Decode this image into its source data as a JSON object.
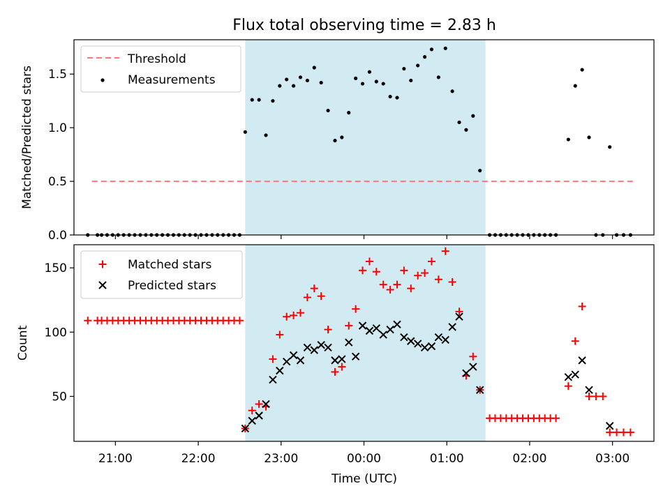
{
  "colors": {
    "shade": "#add8e6",
    "threshold": "#ff7777",
    "measurements": "#000000",
    "matched": "#ff0000",
    "predicted": "#000000"
  },
  "chart_data": [
    {
      "type": "scatter",
      "title": "Flux total observing time = 2.83 h",
      "xlabel": "",
      "ylabel": "Matched/Predicted stars",
      "ylim": [
        0,
        1.82
      ],
      "yticks": [
        0.0,
        0.5,
        1.0,
        1.5
      ],
      "ytick_labels": [
        "0.0",
        "0.5",
        "1.0",
        "1.5"
      ],
      "xlim": [
        "20:30",
        "03:30"
      ],
      "grid": false,
      "legend_position": "top-left",
      "shaded_interval": {
        "start": "22:34",
        "end": "01:28"
      },
      "threshold": {
        "name": "Threshold",
        "value": 0.5,
        "x_start": "20:43",
        "x_end": "03:17"
      },
      "series": [
        {
          "name": "Measurements",
          "marker": "dot",
          "points": [
            [
              "20:40",
              0
            ],
            [
              "20:47",
              0
            ],
            [
              "20:50",
              0
            ],
            [
              "20:54",
              0
            ],
            [
              "20:58",
              0
            ],
            [
              "21:02",
              0
            ],
            [
              "21:06",
              0
            ],
            [
              "21:10",
              0
            ],
            [
              "21:14",
              0
            ],
            [
              "21:18",
              0
            ],
            [
              "21:22",
              0
            ],
            [
              "21:26",
              0
            ],
            [
              "21:30",
              0
            ],
            [
              "21:34",
              0
            ],
            [
              "21:38",
              0
            ],
            [
              "21:42",
              0
            ],
            [
              "21:46",
              0
            ],
            [
              "21:50",
              0
            ],
            [
              "21:54",
              0
            ],
            [
              "21:58",
              0
            ],
            [
              "22:02",
              0
            ],
            [
              "22:06",
              0
            ],
            [
              "22:10",
              0
            ],
            [
              "22:14",
              0
            ],
            [
              "22:18",
              0
            ],
            [
              "22:22",
              0
            ],
            [
              "22:26",
              0
            ],
            [
              "22:30",
              0
            ],
            [
              "22:34",
              0.96
            ],
            [
              "22:39",
              1.26
            ],
            [
              "22:44",
              1.26
            ],
            [
              "22:49",
              0.93
            ],
            [
              "22:54",
              1.25
            ],
            [
              "22:59",
              1.39
            ],
            [
              "23:04",
              1.45
            ],
            [
              "23:09",
              1.39
            ],
            [
              "23:14",
              1.47
            ],
            [
              "23:19",
              1.44
            ],
            [
              "23:24",
              1.56
            ],
            [
              "23:29",
              1.42
            ],
            [
              "23:34",
              1.16
            ],
            [
              "23:39",
              0.88
            ],
            [
              "23:44",
              0.91
            ],
            [
              "23:49",
              1.14
            ],
            [
              "23:54",
              1.46
            ],
            [
              "23:59",
              1.41
            ],
            [
              "00:04",
              1.52
            ],
            [
              "00:09",
              1.43
            ],
            [
              "00:14",
              1.41
            ],
            [
              "00:19",
              1.29
            ],
            [
              "00:24",
              1.28
            ],
            [
              "00:29",
              1.55
            ],
            [
              "00:34",
              1.44
            ],
            [
              "00:39",
              1.58
            ],
            [
              "00:44",
              1.66
            ],
            [
              "00:49",
              1.73
            ],
            [
              "00:54",
              1.47
            ],
            [
              "00:59",
              1.74
            ],
            [
              "01:04",
              1.34
            ],
            [
              "01:09",
              1.05
            ],
            [
              "01:14",
              0.98
            ],
            [
              "01:19",
              1.11
            ],
            [
              "01:24",
              0.6
            ],
            [
              "01:31",
              0
            ],
            [
              "01:35",
              0
            ],
            [
              "01:39",
              0
            ],
            [
              "01:43",
              0
            ],
            [
              "01:47",
              0
            ],
            [
              "01:51",
              0
            ],
            [
              "01:55",
              0
            ],
            [
              "01:59",
              0
            ],
            [
              "02:03",
              0
            ],
            [
              "02:07",
              0
            ],
            [
              "02:11",
              0
            ],
            [
              "02:15",
              0
            ],
            [
              "02:19",
              0
            ],
            [
              "02:28",
              0.89
            ],
            [
              "02:33",
              1.39
            ],
            [
              "02:38",
              1.54
            ],
            [
              "02:43",
              0.91
            ],
            [
              "02:48",
              0
            ],
            [
              "02:53",
              0
            ],
            [
              "02:58",
              0.82
            ],
            [
              "03:03",
              0
            ],
            [
              "03:08",
              0
            ],
            [
              "03:13",
              0
            ]
          ]
        }
      ]
    },
    {
      "type": "scatter",
      "title": "",
      "xlabel": "Time (UTC)",
      "ylabel": "Count",
      "ylim": [
        15,
        168
      ],
      "yticks": [
        50,
        100,
        150
      ],
      "ytick_labels": [
        "50",
        "100",
        "150"
      ],
      "xlim": [
        "20:30",
        "03:30"
      ],
      "xticks": [
        "21:00",
        "22:00",
        "23:00",
        "00:00",
        "01:00",
        "02:00",
        "03:00"
      ],
      "grid": false,
      "legend_position": "top-left",
      "shaded_interval": {
        "start": "22:34",
        "end": "01:28"
      },
      "series": [
        {
          "name": "Matched stars",
          "marker": "plus",
          "points": [
            [
              "20:40",
              109
            ],
            [
              "20:47",
              109
            ],
            [
              "20:50",
              109
            ],
            [
              "20:54",
              109
            ],
            [
              "20:58",
              109
            ],
            [
              "21:02",
              109
            ],
            [
              "21:06",
              109
            ],
            [
              "21:10",
              109
            ],
            [
              "21:14",
              109
            ],
            [
              "21:18",
              109
            ],
            [
              "21:22",
              109
            ],
            [
              "21:26",
              109
            ],
            [
              "21:30",
              109
            ],
            [
              "21:34",
              109
            ],
            [
              "21:38",
              109
            ],
            [
              "21:42",
              109
            ],
            [
              "21:46",
              109
            ],
            [
              "21:50",
              109
            ],
            [
              "21:54",
              109
            ],
            [
              "21:58",
              109
            ],
            [
              "22:02",
              109
            ],
            [
              "22:06",
              109
            ],
            [
              "22:10",
              109
            ],
            [
              "22:14",
              109
            ],
            [
              "22:18",
              109
            ],
            [
              "22:22",
              109
            ],
            [
              "22:26",
              109
            ],
            [
              "22:30",
              109
            ],
            [
              "22:34",
              25
            ],
            [
              "22:39",
              39
            ],
            [
              "22:44",
              44
            ],
            [
              "22:49",
              42
            ],
            [
              "22:54",
              79
            ],
            [
              "22:59",
              98
            ],
            [
              "23:04",
              112
            ],
            [
              "23:09",
              113
            ],
            [
              "23:14",
              115
            ],
            [
              "23:19",
              127
            ],
            [
              "23:24",
              134
            ],
            [
              "23:29",
              128
            ],
            [
              "23:34",
              102
            ],
            [
              "23:39",
              69
            ],
            [
              "23:44",
              73
            ],
            [
              "23:49",
              105
            ],
            [
              "23:54",
              118
            ],
            [
              "23:59",
              148
            ],
            [
              "00:04",
              155
            ],
            [
              "00:09",
              147
            ],
            [
              "00:14",
              137
            ],
            [
              "00:19",
              133
            ],
            [
              "00:24",
              137
            ],
            [
              "00:29",
              148
            ],
            [
              "00:34",
              134
            ],
            [
              "00:39",
              144
            ],
            [
              "00:44",
              146
            ],
            [
              "00:49",
              155
            ],
            [
              "00:54",
              141
            ],
            [
              "00:59",
              163
            ],
            [
              "01:04",
              139
            ],
            [
              "01:09",
              116
            ],
            [
              "01:14",
              66
            ],
            [
              "01:19",
              81
            ],
            [
              "01:24",
              55
            ],
            [
              "01:31",
              33
            ],
            [
              "01:35",
              33
            ],
            [
              "01:39",
              33
            ],
            [
              "01:43",
              33
            ],
            [
              "01:47",
              33
            ],
            [
              "01:51",
              33
            ],
            [
              "01:55",
              33
            ],
            [
              "01:59",
              33
            ],
            [
              "02:03",
              33
            ],
            [
              "02:07",
              33
            ],
            [
              "02:11",
              33
            ],
            [
              "02:15",
              33
            ],
            [
              "02:19",
              33
            ],
            [
              "02:28",
              58
            ],
            [
              "02:33",
              93
            ],
            [
              "02:38",
              120
            ],
            [
              "02:43",
              50
            ],
            [
              "02:48",
              50
            ],
            [
              "02:53",
              50
            ],
            [
              "02:58",
              22
            ],
            [
              "03:03",
              22
            ],
            [
              "03:08",
              22
            ],
            [
              "03:13",
              22
            ]
          ]
        },
        {
          "name": "Predicted stars",
          "marker": "x",
          "points": [
            [
              "22:34",
              25
            ],
            [
              "22:39",
              31
            ],
            [
              "22:44",
              35
            ],
            [
              "22:49",
              44
            ],
            [
              "22:54",
              63
            ],
            [
              "22:59",
              70
            ],
            [
              "23:04",
              77
            ],
            [
              "23:09",
              82
            ],
            [
              "23:14",
              78
            ],
            [
              "23:19",
              88
            ],
            [
              "23:24",
              86
            ],
            [
              "23:29",
              90
            ],
            [
              "23:34",
              88
            ],
            [
              "23:39",
              78
            ],
            [
              "23:44",
              79
            ],
            [
              "23:49",
              92
            ],
            [
              "23:54",
              81
            ],
            [
              "23:59",
              105
            ],
            [
              "00:04",
              101
            ],
            [
              "00:09",
              103
            ],
            [
              "00:14",
              98
            ],
            [
              "00:19",
              102
            ],
            [
              "00:24",
              106
            ],
            [
              "00:29",
              96
            ],
            [
              "00:34",
              93
            ],
            [
              "00:39",
              91
            ],
            [
              "00:44",
              88
            ],
            [
              "00:49",
              89
            ],
            [
              "00:54",
              96
            ],
            [
              "00:59",
              94
            ],
            [
              "01:04",
              104
            ],
            [
              "01:09",
              112
            ],
            [
              "01:14",
              68
            ],
            [
              "01:19",
              73
            ],
            [
              "01:24",
              55
            ],
            [
              "02:28",
              65
            ],
            [
              "02:33",
              67
            ],
            [
              "02:38",
              78
            ],
            [
              "02:43",
              55
            ],
            [
              "02:58",
              27
            ]
          ]
        }
      ]
    }
  ]
}
